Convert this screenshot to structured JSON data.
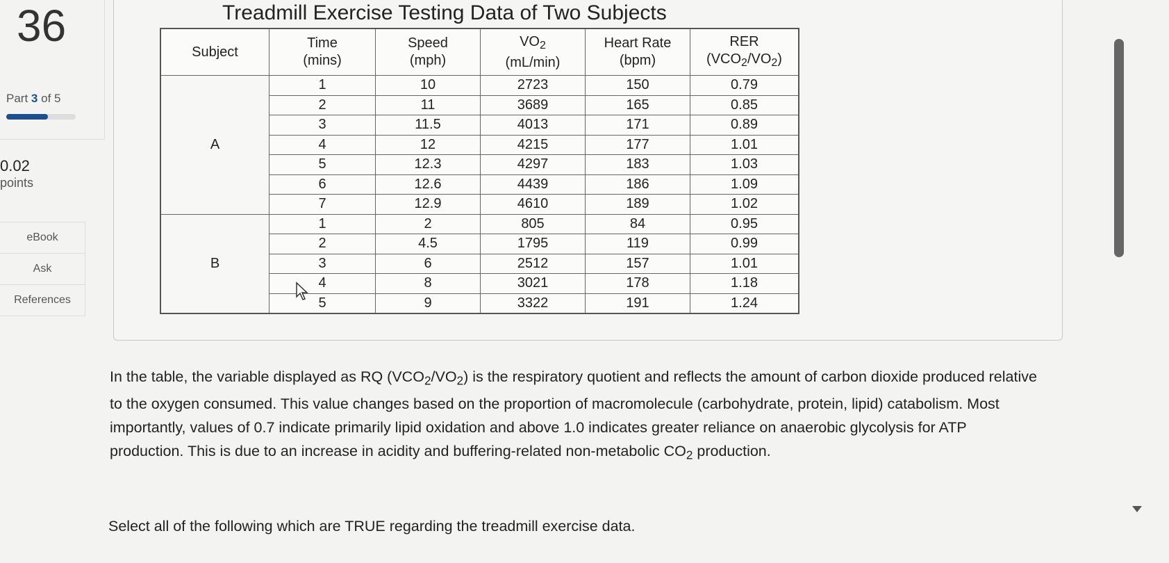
{
  "question": {
    "number": "36"
  },
  "sidebar": {
    "part_prefix": "Part",
    "part_current": "3",
    "part_suffix": "of 5",
    "progress_fraction": 0.6,
    "points_value": "0.02",
    "points_label": "points",
    "links": [
      {
        "label": "eBook"
      },
      {
        "label": "Ask"
      },
      {
        "label": "References"
      }
    ]
  },
  "table": {
    "title": "Treadmill Exercise Testing Data of Two Subjects",
    "headers": {
      "subject": "Subject",
      "time_1": "Time",
      "time_2": "(mins)",
      "speed_1": "Speed",
      "speed_2": "(mph)",
      "vo2_1": "VO2",
      "vo2_2": "(mL/min)",
      "hr_1": "Heart Rate",
      "hr_2": "(bpm)",
      "rer_1": "RER",
      "rer_2": "(VCO2/VO2)"
    },
    "groups": [
      {
        "subject": "A",
        "rows": [
          [
            "1",
            "10",
            "2723",
            "150",
            "0.79"
          ],
          [
            "2",
            "11",
            "3689",
            "165",
            "0.85"
          ],
          [
            "3",
            "11.5",
            "4013",
            "171",
            "0.89"
          ],
          [
            "4",
            "12",
            "4215",
            "177",
            "1.01"
          ],
          [
            "5",
            "12.3",
            "4297",
            "183",
            "1.03"
          ],
          [
            "6",
            "12.6",
            "4439",
            "186",
            "1.09"
          ],
          [
            "7",
            "12.9",
            "4610",
            "189",
            "1.02"
          ]
        ]
      },
      {
        "subject": "B",
        "rows": [
          [
            "1",
            "2",
            "805",
            "84",
            "0.95"
          ],
          [
            "2",
            "4.5",
            "1795",
            "119",
            "0.99"
          ],
          [
            "3",
            "6",
            "2512",
            "157",
            "1.01"
          ],
          [
            "4",
            "8",
            "3021",
            "178",
            "1.18"
          ],
          [
            "5",
            "9",
            "3322",
            "191",
            "1.24"
          ]
        ]
      }
    ]
  },
  "passage": "In the table, the variable displayed as RQ (VCO2/VO2) is the respiratory quotient and reflects the amount of carbon dioxide produced relative to the oxygen consumed. This value changes based on the proportion of macromolecule (carbohydrate, protein, lipid) catabolism. Most importantly, values of 0.7 indicate primarily lipid oxidation and above 1.0 indicates greater reliance on anaerobic glycolysis for ATP production. This is due to an increase in acidity and buffering-related non-metabolic CO2 production.",
  "instruction": "Select all of the following which are TRUE regarding the treadmill exercise data."
}
